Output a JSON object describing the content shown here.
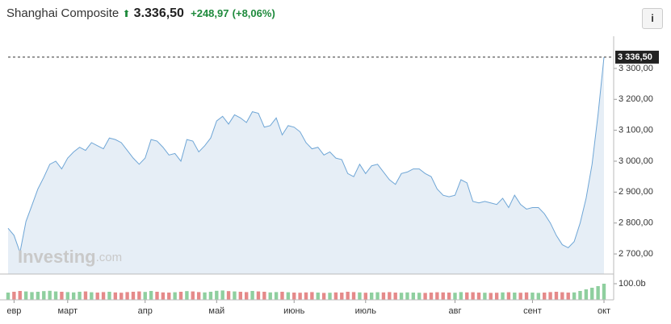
{
  "header": {
    "name": "Shanghai Composite",
    "price": "3.336,50",
    "change": "+248,97",
    "change_pct": "(+8,06%)",
    "info": "i"
  },
  "watermark": {
    "brand": "Investing",
    "suffix": ".com"
  },
  "chart_data": [
    {
      "type": "area",
      "color": "#6fa6d6",
      "fill": "#e6eef6",
      "values": [
        2783,
        2760,
        2705,
        2805,
        2857,
        2910,
        2948,
        2990,
        3000,
        2975,
        3010,
        3030,
        3045,
        3035,
        3060,
        3050,
        3040,
        3075,
        3070,
        3060,
        3035,
        3010,
        2990,
        3010,
        3070,
        3065,
        3045,
        3020,
        3025,
        3000,
        3070,
        3065,
        3030,
        3050,
        3075,
        3130,
        3145,
        3120,
        3150,
        3140,
        3125,
        3160,
        3155,
        3110,
        3115,
        3140,
        3085,
        3115,
        3110,
        3095,
        3060,
        3040,
        3045,
        3020,
        3030,
        3010,
        3005,
        2960,
        2950,
        2990,
        2960,
        2985,
        2990,
        2965,
        2940,
        2925,
        2960,
        2965,
        2975,
        2975,
        2960,
        2950,
        2910,
        2890,
        2885,
        2890,
        2940,
        2930,
        2870,
        2865,
        2870,
        2865,
        2860,
        2880,
        2850,
        2890,
        2860,
        2845,
        2850,
        2850,
        2830,
        2800,
        2760,
        2730,
        2720,
        2740,
        2800,
        2880,
        2990,
        3150,
        3336.5
      ],
      "last_value_label": "3 336,50",
      "xlim": [
        0,
        100
      ],
      "xticks": [
        {
          "value": 1,
          "label": "евр"
        },
        {
          "value": 10,
          "label": "март"
        },
        {
          "value": 23,
          "label": "апр"
        },
        {
          "value": 35,
          "label": "май"
        },
        {
          "value": 48,
          "label": "июнь"
        },
        {
          "value": 60,
          "label": "июль"
        },
        {
          "value": 75,
          "label": "авг"
        },
        {
          "value": 88,
          "label": "сент"
        },
        {
          "value": 100,
          "label": "окт"
        }
      ],
      "ylim": [
        2635,
        3404
      ],
      "yticks": [
        {
          "value": 2700,
          "label": "2 700,00"
        },
        {
          "value": 2800,
          "label": "2 800,00"
        },
        {
          "value": 2900,
          "label": "2 900,00"
        },
        {
          "value": 3000,
          "label": "3 000,00"
        },
        {
          "value": 3100,
          "label": "3 100,00"
        },
        {
          "value": 3200,
          "label": "3 200,00"
        },
        {
          "value": 3300,
          "label": "3 300,00"
        }
      ]
    },
    {
      "type": "bar",
      "up_color": "#8fcf9f",
      "down_color": "#e58a8a",
      "values": [
        45,
        50,
        55,
        52,
        48,
        50,
        54,
        56,
        52,
        50,
        48,
        46,
        50,
        52,
        47,
        45,
        48,
        50,
        46,
        44,
        48,
        50,
        52,
        49,
        55,
        50,
        46,
        45,
        47,
        50,
        54,
        52,
        48,
        46,
        50,
        56,
        58,
        54,
        52,
        50,
        48,
        55,
        52,
        50,
        46,
        48,
        50,
        47,
        45,
        44,
        46,
        48,
        45,
        43,
        44,
        46,
        45,
        50,
        48,
        46,
        44,
        45,
        47,
        46,
        48,
        45,
        44,
        46,
        45,
        44,
        43,
        45,
        47,
        46,
        45,
        44,
        48,
        46,
        47,
        45,
        44,
        43,
        44,
        46,
        47,
        45,
        44,
        46,
        45,
        43,
        45,
        48,
        50,
        47,
        45,
        46,
        55,
        65,
        75,
        85,
        100
      ],
      "ylim": [
        0,
        100
      ],
      "yticks": [
        {
          "value": 100,
          "label": "100.0b"
        }
      ]
    }
  ]
}
